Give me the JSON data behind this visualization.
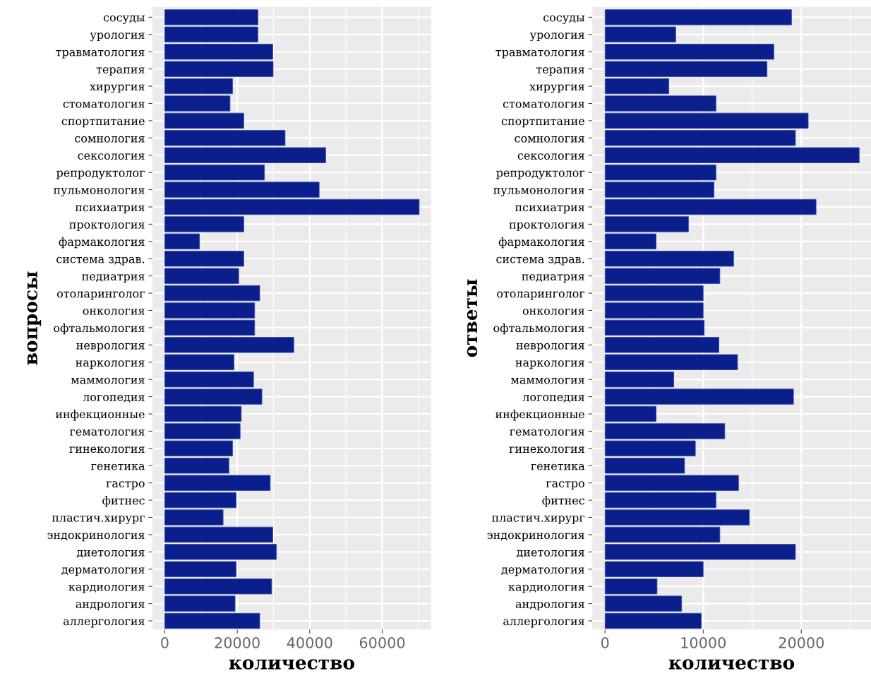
{
  "chart_data": [
    {
      "type": "bar",
      "orientation": "horizontal",
      "ylabel": "вопросы",
      "xlabel": "количество",
      "color": "#0a1e8c",
      "grid": true,
      "legend": false,
      "categories": [
        "сосуды",
        "урология",
        "травматология",
        "терапия",
        "хирургия",
        "стоматология",
        "спортпитание",
        "сомнология",
        "сексология",
        "репродуктолог",
        "пульмонология",
        "психиатрия",
        "проктология",
        "фармакология",
        "система здрав.",
        "педиатрия",
        "отоларинголог",
        "онкология",
        "офтальмология",
        "неврология",
        "наркология",
        "маммология",
        "логопедия",
        "инфекционные",
        "гематология",
        "гинекология",
        "генетика",
        "гастро",
        "фитнес",
        "пластич.хирург",
        "эндокринология",
        "диетология",
        "дерматология",
        "кардиология",
        "андрология",
        "аллергология"
      ],
      "values": [
        25700,
        25700,
        29800,
        29900,
        18700,
        18000,
        21800,
        33200,
        44400,
        27500,
        42600,
        70200,
        21800,
        9600,
        21800,
        20400,
        26200,
        24800,
        24800,
        35600,
        19100,
        24500,
        26800,
        21100,
        20800,
        18700,
        17700,
        29100,
        19700,
        16100,
        29800,
        30800,
        19700,
        29500,
        19400,
        26200
      ],
      "xlim": [
        -3400,
        73500
      ],
      "xticks": [
        0,
        20000,
        40000,
        60000
      ]
    },
    {
      "type": "bar",
      "orientation": "horizontal",
      "ylabel": "ответы",
      "xlabel": "количество",
      "color": "#0a1e8c",
      "grid": true,
      "legend": false,
      "categories": [
        "сосуды",
        "урология",
        "травматология",
        "терапия",
        "хирургия",
        "стоматология",
        "спортпитание",
        "сомнология",
        "сексология",
        "репродуктолог",
        "пульмонология",
        "психиатрия",
        "проктология",
        "фармакология",
        "система здрав.",
        "педиатрия",
        "отоларинголог",
        "онкология",
        "офтальмология",
        "неврология",
        "наркология",
        "маммология",
        "логопедия",
        "инфекционные",
        "гематология",
        "гинекология",
        "генетика",
        "гастро",
        "фитнес",
        "пластич.хирург",
        "эндокринология",
        "диетология",
        "дерматология",
        "кардиология",
        "андрология",
        "аллергология"
      ],
      "values": [
        19000,
        7200,
        17200,
        16500,
        6500,
        11300,
        20700,
        19400,
        25900,
        11300,
        11100,
        21500,
        8500,
        5200,
        13100,
        11700,
        10000,
        10000,
        10100,
        11600,
        13500,
        7000,
        19200,
        5200,
        12200,
        9200,
        8100,
        13600,
        11300,
        14700,
        11700,
        19400,
        10000,
        5300,
        7800,
        9800
      ],
      "xlim": [
        -1300,
        27100
      ],
      "xticks": [
        0,
        10000,
        20000
      ]
    }
  ]
}
